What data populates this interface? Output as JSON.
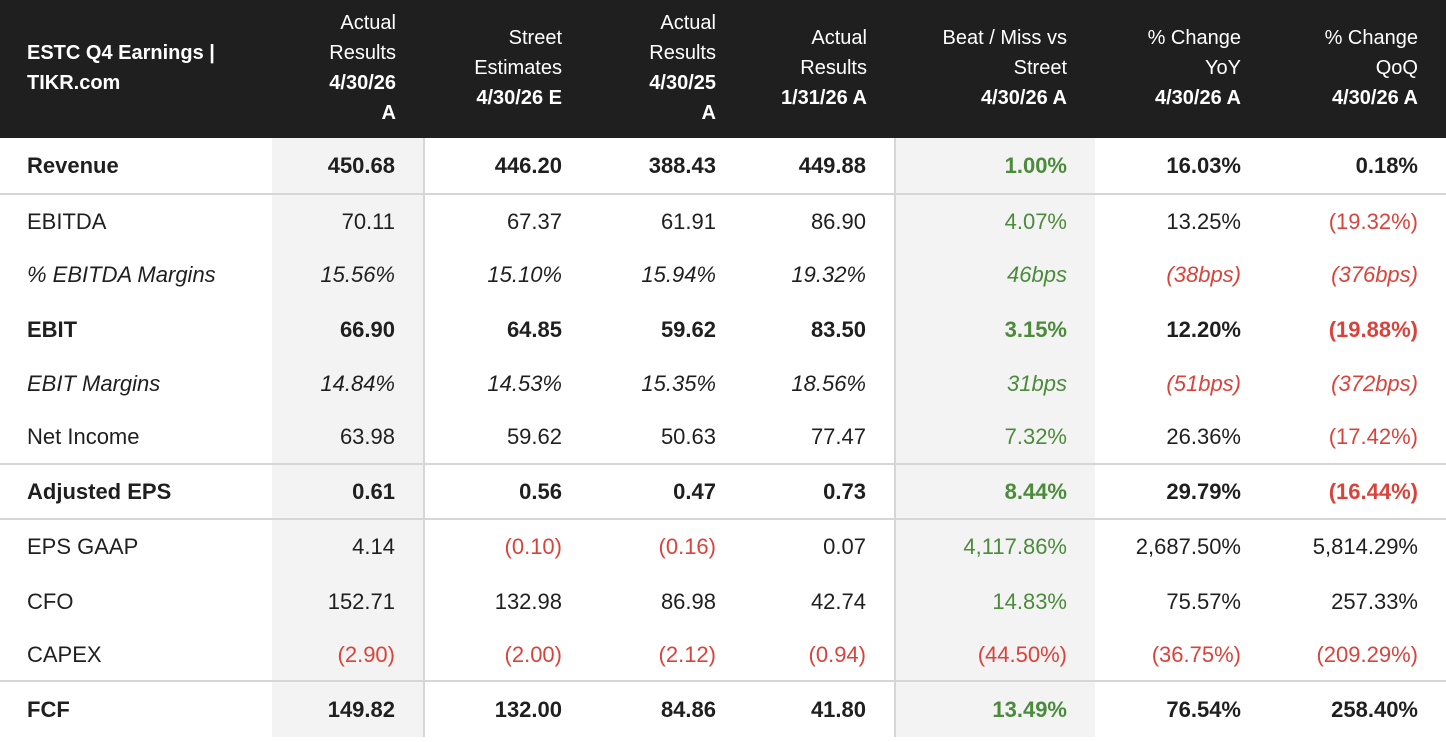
{
  "header": {
    "title_line1": "ESTC Q4 Earnings |",
    "title_line2": "TIKR.com",
    "columns": [
      {
        "l1": "Actual",
        "l2": "Results",
        "l3": "4/30/26",
        "l4": "A"
      },
      {
        "l1": "",
        "l2": "Street",
        "l3": "Estimates",
        "l4": "4/30/26 E"
      },
      {
        "l1": "Actual",
        "l2": "Results",
        "l3": "4/30/25",
        "l4": "A"
      },
      {
        "l1": "",
        "l2": "Actual",
        "l3": "Results",
        "l4": "1/31/26 A"
      },
      {
        "l1": "",
        "l2": "Beat / Miss vs",
        "l3": "Street",
        "l4": "4/30/26 A"
      },
      {
        "l1": "",
        "l2": "% Change",
        "l3": "YoY",
        "l4": "4/30/26 A"
      },
      {
        "l1": "",
        "l2": "% Change",
        "l3": "QoQ",
        "l4": "4/30/26 A"
      }
    ]
  },
  "rows": [
    {
      "label": "Revenue",
      "values": [
        "450.68",
        "446.20",
        "388.43",
        "449.88",
        "1.00%",
        "16.03%",
        "0.18%"
      ]
    },
    {
      "label": "EBITDA",
      "values": [
        "70.11",
        "67.37",
        "61.91",
        "86.90",
        "4.07%",
        "13.25%",
        "(19.32%)"
      ]
    },
    {
      "label": "% EBITDA Margins",
      "values": [
        "15.56%",
        "15.10%",
        "15.94%",
        "19.32%",
        "46bps",
        "(38bps)",
        "(376bps)"
      ]
    },
    {
      "label": "EBIT",
      "values": [
        "66.90",
        "64.85",
        "59.62",
        "83.50",
        "3.15%",
        "12.20%",
        "(19.88%)"
      ]
    },
    {
      "label": "EBIT Margins",
      "values": [
        "14.84%",
        "14.53%",
        "15.35%",
        "18.56%",
        "31bps",
        "(51bps)",
        "(372bps)"
      ]
    },
    {
      "label": "Net Income",
      "values": [
        "63.98",
        "59.62",
        "50.63",
        "77.47",
        "7.32%",
        "26.36%",
        "(17.42%)"
      ]
    },
    {
      "label": "Adjusted EPS",
      "values": [
        "0.61",
        "0.56",
        "0.47",
        "0.73",
        "8.44%",
        "29.79%",
        "(16.44%)"
      ]
    },
    {
      "label": "EPS GAAP",
      "values": [
        "4.14",
        "(0.10)",
        "(0.16)",
        "0.07",
        "4,117.86%",
        "2,687.50%",
        "5,814.29%"
      ]
    },
    {
      "label": "CFO",
      "values": [
        "152.71",
        "132.98",
        "86.98",
        "42.74",
        "14.83%",
        "75.57%",
        "257.33%"
      ]
    },
    {
      "label": "CAPEX",
      "values": [
        "(2.90)",
        "(2.00)",
        "(2.12)",
        "(0.94)",
        "(44.50%)",
        "(36.75%)",
        "(209.29%)"
      ]
    },
    {
      "label": "FCF",
      "values": [
        "149.82",
        "132.00",
        "84.86",
        "41.80",
        "13.49%",
        "76.54%",
        "258.40%"
      ]
    }
  ],
  "colors": {
    "header_bg": "#1f1f1f",
    "positive": "#4b8b3b",
    "negative": "#d9433b",
    "shade": "#f3f3f3"
  }
}
